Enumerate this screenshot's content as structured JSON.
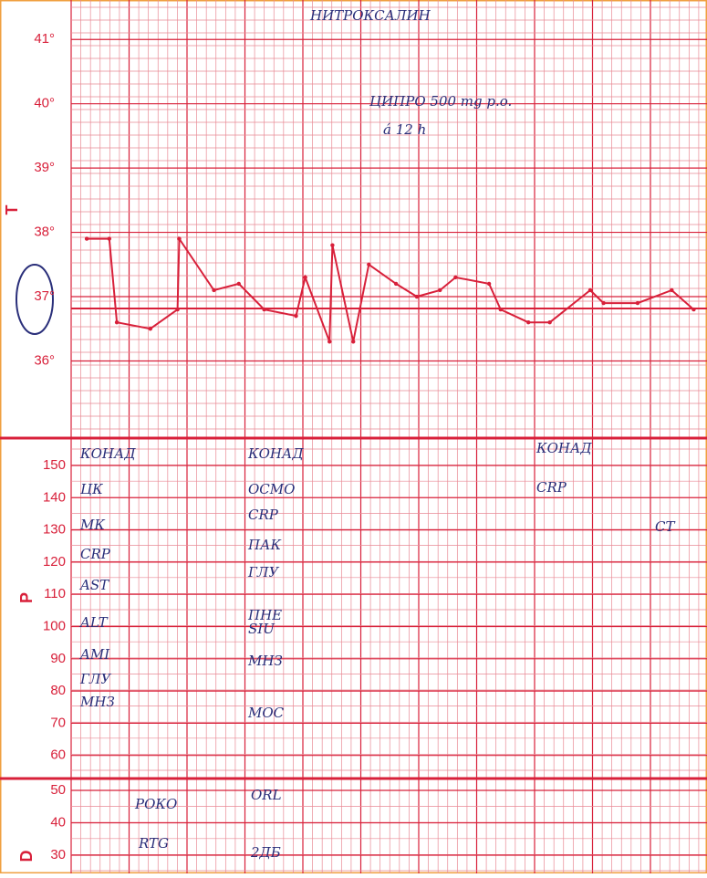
{
  "chart_data": {
    "type": "line",
    "axis_label": "T",
    "x": [
      0.27,
      0.66,
      0.79,
      1.37,
      1.84,
      1.87,
      2.47,
      2.9,
      3.34,
      3.89,
      4.05,
      4.47,
      4.52,
      4.88,
      5.15,
      5.62,
      5.98,
      6.38,
      6.65,
      7.23,
      7.43,
      7.91,
      8.28,
      8.98,
      9.21,
      9.8,
      10.39,
      10.77
    ],
    "values": [
      37.9,
      37.9,
      36.6,
      36.5,
      36.8,
      37.9,
      37.1,
      37.2,
      36.8,
      36.7,
      37.3,
      36.3,
      37.8,
      36.3,
      37.5,
      37.2,
      37.0,
      37.1,
      37.3,
      37.2,
      36.8,
      36.6,
      36.6,
      37.1,
      36.9,
      36.9,
      37.1,
      36.8
    ],
    "color": "#d8203a",
    "xlim": [
      0,
      11
    ],
    "ylim": [
      34.8,
      41.5
    ],
    "yticks": [
      {
        "value": 36,
        "label": "36°"
      },
      {
        "value": 37,
        "label": "37°"
      },
      {
        "value": 38,
        "label": "38°"
      },
      {
        "value": 39,
        "label": "39°"
      },
      {
        "value": 40,
        "label": "40°"
      },
      {
        "value": 41,
        "label": "41°"
      }
    ]
  },
  "p_scale": {
    "axis_label": "P",
    "ticks": [
      150,
      140,
      130,
      120,
      110,
      100,
      90,
      80,
      70,
      60
    ]
  },
  "d_scale": {
    "axis_label": "D",
    "ticks": [
      50,
      40,
      30
    ]
  },
  "notes": [
    "НИТРОКСАЛИН",
    "ЦИПРО 500 mg p.o.",
    "á 12 h",
    "КОНАД",
    "ЦК",
    "МК",
    "CRP",
    "AST",
    "ALT",
    "AMI",
    "ГЛУ",
    "МНЗ",
    "КОНАД",
    "ОСМО",
    "CRP",
    "ПАК",
    "ГЛУ",
    "ПНЕ",
    "SIU",
    "МНЗ",
    "МОС",
    "КОНАД",
    "CRP",
    "CT",
    "РОКО",
    "RTG",
    "ORL",
    "2ДБ"
  ]
}
